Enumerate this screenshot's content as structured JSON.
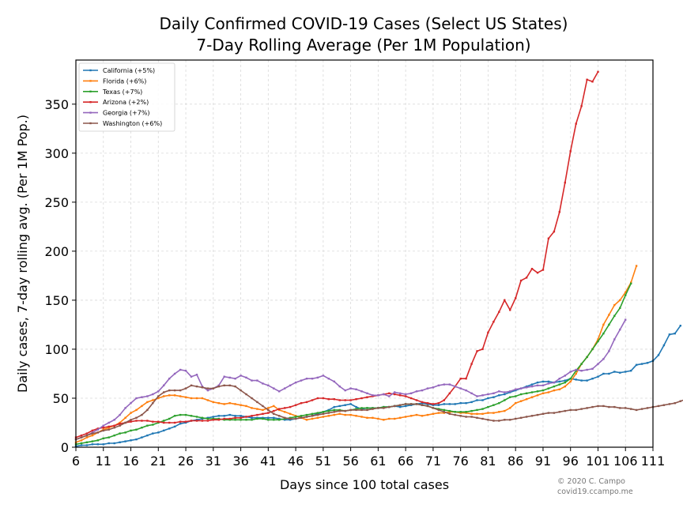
{
  "chart_data": {
    "type": "line",
    "title_line1": "Daily Confirmed COVID-19 Cases (Select US States)",
    "title_line2": "7-Day Rolling Average (Per 1M Population)",
    "xlabel": "Days since 100 total cases",
    "ylabel": "Daily cases, 7-day rolling avg. (Per 1M Pop.)",
    "xlim": [
      6,
      111
    ],
    "ylim": [
      0,
      395
    ],
    "xticks": [
      6,
      11,
      16,
      21,
      26,
      31,
      36,
      41,
      46,
      51,
      56,
      61,
      66,
      71,
      76,
      81,
      86,
      91,
      96,
      101,
      106,
      111
    ],
    "yticks": [
      0,
      50,
      100,
      150,
      200,
      250,
      300,
      350
    ],
    "grid": true,
    "legend_position": "top-left",
    "credit_line1": "© 2020 C. Campo",
    "credit_line2": "covid19.ccampo.me",
    "series": [
      {
        "name": "California (+5%)",
        "color": "#1f77b4",
        "x_start": 6,
        "values": [
          1,
          2,
          2,
          3,
          3,
          3,
          4,
          4,
          5,
          6,
          7,
          8,
          10,
          12,
          14,
          15,
          17,
          19,
          21,
          24,
          25,
          27,
          28,
          29,
          30,
          31,
          32,
          32,
          33,
          32,
          32,
          31,
          30,
          30,
          30,
          30,
          30,
          29,
          28,
          28,
          29,
          30,
          31,
          32,
          34,
          36,
          38,
          41,
          42,
          43,
          44,
          41,
          39,
          40,
          40,
          40,
          41,
          41,
          42,
          41,
          42,
          43,
          44,
          45,
          44,
          43,
          43,
          44,
          44,
          44,
          45,
          45,
          46,
          48,
          48,
          50,
          51,
          53,
          54,
          56,
          58,
          60,
          62,
          64,
          66,
          67,
          67,
          66,
          67,
          68,
          70,
          69,
          68,
          68,
          70,
          72,
          75,
          75,
          77,
          76,
          77,
          78,
          84,
          85,
          86,
          88,
          94,
          104,
          115,
          116,
          124
        ]
      },
      {
        "name": "Florida (+6%)",
        "color": "#ff7f0e",
        "x_start": 6,
        "values": [
          5,
          7,
          10,
          12,
          15,
          18,
          20,
          22,
          25,
          30,
          35,
          38,
          42,
          46,
          48,
          50,
          52,
          53,
          53,
          52,
          51,
          50,
          50,
          50,
          48,
          46,
          45,
          44,
          45,
          44,
          43,
          42,
          40,
          39,
          38,
          40,
          42,
          38,
          36,
          34,
          32,
          30,
          28,
          29,
          30,
          31,
          32,
          33,
          34,
          33,
          33,
          32,
          31,
          30,
          30,
          29,
          28,
          29,
          29,
          30,
          31,
          32,
          33,
          32,
          33,
          34,
          35,
          35,
          36,
          36,
          35,
          35,
          34,
          34,
          34,
          35,
          35,
          36,
          37,
          40,
          45,
          47,
          49,
          51,
          53,
          55,
          56,
          58,
          59,
          62,
          67,
          75,
          85,
          92,
          100,
          110,
          125,
          135,
          145,
          150,
          158,
          168,
          185
        ]
      },
      {
        "name": "Texas (+7%)",
        "color": "#2ca02c",
        "x_start": 6,
        "values": [
          3,
          4,
          5,
          6,
          7,
          9,
          10,
          12,
          14,
          15,
          17,
          18,
          20,
          22,
          23,
          25,
          27,
          29,
          32,
          33,
          33,
          32,
          31,
          30,
          29,
          29,
          29,
          28,
          28,
          28,
          28,
          28,
          28,
          29,
          29,
          28,
          28,
          28,
          29,
          30,
          31,
          32,
          33,
          34,
          35,
          36,
          37,
          38,
          38,
          37,
          38,
          39,
          40,
          40,
          40,
          40,
          41,
          41,
          42,
          43,
          44,
          44,
          44,
          43,
          42,
          40,
          39,
          38,
          37,
          36,
          36,
          36,
          37,
          38,
          39,
          41,
          43,
          45,
          48,
          51,
          52,
          54,
          55,
          56,
          57,
          58,
          60,
          62,
          64,
          66,
          70,
          78,
          85,
          92,
          100,
          108,
          116,
          125,
          134,
          142,
          155,
          167
        ]
      },
      {
        "name": "Arizona (+2%)",
        "color": "#d62728",
        "x_start": 6,
        "values": [
          10,
          12,
          14,
          17,
          19,
          20,
          21,
          22,
          24,
          25,
          26,
          27,
          27,
          27,
          26,
          26,
          25,
          25,
          25,
          26,
          26,
          27,
          27,
          27,
          27,
          28,
          28,
          29,
          29,
          30,
          30,
          31,
          32,
          33,
          34,
          35,
          37,
          39,
          40,
          41,
          43,
          45,
          46,
          48,
          50,
          50,
          49,
          49,
          48,
          48,
          48,
          49,
          50,
          51,
          52,
          53,
          54,
          55,
          54,
          53,
          52,
          50,
          48,
          46,
          45,
          44,
          45,
          48,
          55,
          62,
          70,
          70,
          85,
          98,
          100,
          117,
          128,
          138,
          150,
          140,
          152,
          170,
          173,
          182,
          178,
          181,
          213,
          220,
          240,
          270,
          302,
          330,
          348,
          375,
          373,
          383
        ]
      },
      {
        "name": "Georgia (+7%)",
        "color": "#9467bd",
        "x_start": 6,
        "values": [
          8,
          10,
          12,
          15,
          18,
          22,
          25,
          28,
          33,
          40,
          45,
          50,
          51,
          52,
          54,
          57,
          63,
          70,
          75,
          79,
          78,
          72,
          74,
          62,
          58,
          60,
          63,
          72,
          71,
          70,
          73,
          71,
          68,
          68,
          65,
          63,
          60,
          57,
          60,
          63,
          66,
          68,
          70,
          70,
          71,
          73,
          70,
          67,
          62,
          58,
          60,
          59,
          57,
          55,
          53,
          53,
          54,
          52,
          56,
          55,
          54,
          55,
          57,
          58,
          60,
          61,
          63,
          64,
          64,
          62,
          60,
          58,
          55,
          52,
          53,
          54,
          55,
          57,
          56,
          57,
          59,
          60,
          61,
          62,
          63,
          63,
          65,
          66,
          70,
          73,
          77,
          79,
          78,
          79,
          80,
          85,
          90,
          98,
          110,
          120,
          130
        ]
      },
      {
        "name": "Washington (+6%)",
        "color": "#8c564b",
        "x_start": 6,
        "values": [
          8,
          10,
          12,
          14,
          15,
          17,
          18,
          20,
          22,
          25,
          28,
          30,
          33,
          38,
          45,
          52,
          56,
          58,
          58,
          58,
          60,
          63,
          62,
          61,
          60,
          60,
          62,
          63,
          63,
          62,
          58,
          54,
          50,
          46,
          42,
          38,
          34,
          32,
          30,
          29,
          29,
          30,
          31,
          32,
          33,
          34,
          35,
          36,
          37,
          37,
          38,
          38,
          38,
          38,
          39,
          40,
          40,
          41,
          42,
          43,
          44,
          44,
          44,
          43,
          42,
          40,
          38,
          36,
          34,
          33,
          32,
          31,
          31,
          30,
          29,
          28,
          27,
          27,
          28,
          28,
          29,
          30,
          31,
          32,
          33,
          34,
          35,
          35,
          36,
          37,
          38,
          38,
          39,
          40,
          41,
          42,
          42,
          41,
          41,
          40,
          40,
          39,
          38,
          39,
          40,
          41,
          42,
          43,
          44,
          45,
          47,
          49,
          51,
          54,
          58,
          62
        ]
      }
    ]
  }
}
